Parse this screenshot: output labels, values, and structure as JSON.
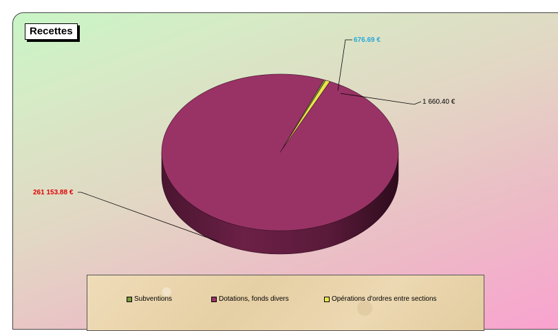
{
  "chart_data": {
    "type": "pie",
    "title": "Recettes",
    "series": [
      {
        "name": "Subventions",
        "value": 676.69,
        "label": "676.69 €",
        "color": "#7e9a3e",
        "label_color": "#29a8d8"
      },
      {
        "name": "Dotations, fonds divers",
        "value": 261153.88,
        "label": "261 153.88 €",
        "color": "#993366",
        "label_color": "#e00000"
      },
      {
        "name": "Opérations d'ordres entre sections",
        "value": 1660.4,
        "label": "1 660.40 €",
        "color": "#e5e54a",
        "label_color": "#000000"
      }
    ],
    "legend_placement": "bottom"
  }
}
